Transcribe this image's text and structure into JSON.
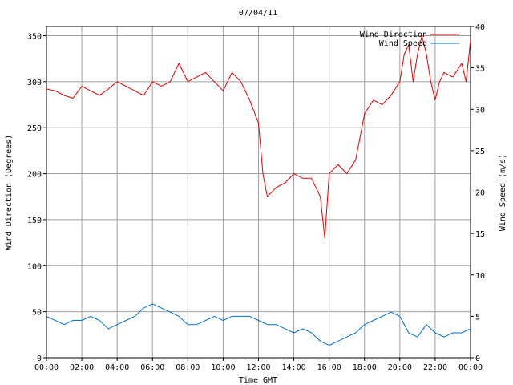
{
  "chart_data": {
    "type": "line",
    "title": "07/04/11",
    "xlabel": "Time GMT",
    "ylabel_left": "Wind Direction (Degrees)",
    "ylabel_right": "Wind Speed (m/s)",
    "x_ticks": [
      "00:00",
      "02:00",
      "04:00",
      "06:00",
      "08:00",
      "10:00",
      "12:00",
      "14:00",
      "16:00",
      "18:00",
      "20:00",
      "22:00",
      "00:00"
    ],
    "xlim_hours": [
      0,
      24
    ],
    "y_left_ticks": [
      "0",
      "50",
      "100",
      "150",
      "200",
      "250",
      "300",
      "350"
    ],
    "ylim_left": [
      0,
      360
    ],
    "y_right_ticks": [
      "0",
      "5",
      "10",
      "15",
      "20",
      "25",
      "30",
      "35",
      "40"
    ],
    "ylim_right": [
      0,
      40
    ],
    "grid": true,
    "legend": "top-right",
    "series": [
      {
        "name": "Wind Direction",
        "axis": "left",
        "color": "#e00000",
        "time_hours": [
          0,
          0.5,
          1,
          1.5,
          2,
          2.5,
          3,
          3.5,
          4,
          4.5,
          5,
          5.5,
          6,
          6.5,
          7,
          7.5,
          8,
          8.5,
          9,
          9.5,
          10,
          10.5,
          11,
          11.5,
          12,
          12.25,
          12.5,
          13,
          13.5,
          14,
          14.5,
          15,
          15.5,
          15.75,
          16,
          16.5,
          17,
          17.5,
          18,
          18.5,
          19,
          19.5,
          20,
          20.25,
          20.5,
          20.75,
          21,
          21.25,
          21.5,
          21.75,
          22,
          22.25,
          22.5,
          23,
          23.5,
          23.75,
          24
        ],
        "values": [
          292,
          290,
          285,
          282,
          295,
          290,
          285,
          292,
          300,
          295,
          290,
          285,
          300,
          295,
          300,
          320,
          300,
          305,
          310,
          300,
          290,
          310,
          300,
          280,
          255,
          200,
          175,
          185,
          190,
          200,
          195,
          195,
          175,
          130,
          200,
          210,
          200,
          215,
          265,
          280,
          275,
          285,
          300,
          330,
          340,
          300,
          330,
          350,
          330,
          300,
          280,
          300,
          310,
          305,
          320,
          300,
          345
        ]
      },
      {
        "name": "Wind Speed",
        "axis": "right",
        "color": "#0070d0",
        "time_hours": [
          0,
          0.5,
          1,
          1.5,
          2,
          2.5,
          3,
          3.5,
          4,
          4.5,
          5,
          5.5,
          6,
          6.5,
          7,
          7.5,
          8,
          8.5,
          9,
          9.5,
          10,
          10.5,
          11,
          11.5,
          12,
          12.5,
          13,
          13.5,
          14,
          14.5,
          15,
          15.5,
          16,
          16.5,
          17,
          17.5,
          18,
          18.5,
          19,
          19.5,
          20,
          20.5,
          21,
          21.5,
          22,
          22.5,
          23,
          23.5,
          24
        ],
        "values": [
          5,
          4.5,
          4,
          4.5,
          4.5,
          5,
          4.5,
          3.5,
          4,
          4.5,
          5,
          6,
          6.5,
          6,
          5.5,
          5,
          4,
          4,
          4.5,
          5,
          4.5,
          5,
          5,
          5,
          4.5,
          4,
          4,
          3.5,
          3,
          3.5,
          3,
          2,
          1.5,
          2,
          2.5,
          3,
          4,
          4.5,
          5,
          5.5,
          5,
          3,
          2.5,
          4,
          3,
          2.5,
          3,
          3,
          3.5
        ]
      }
    ]
  }
}
